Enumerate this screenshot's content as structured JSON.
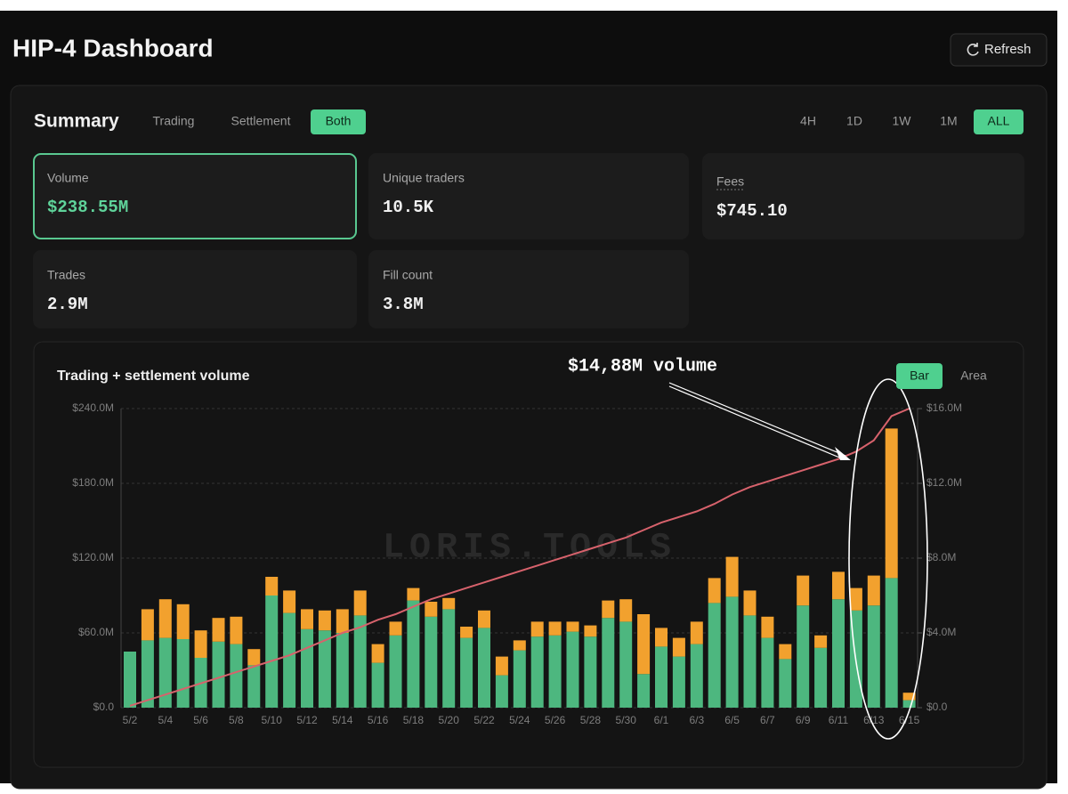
{
  "header": {
    "title": "HIP-4 Dashboard",
    "refresh": "Refresh"
  },
  "summary": {
    "title": "Summary",
    "tabs": [
      {
        "label": "Trading",
        "selected": false
      },
      {
        "label": "Settlement",
        "selected": false
      },
      {
        "label": "Both",
        "selected": true
      }
    ],
    "ranges": [
      {
        "label": "4H",
        "selected": false
      },
      {
        "label": "1D",
        "selected": false
      },
      {
        "label": "1W",
        "selected": false
      },
      {
        "label": "1M",
        "selected": false
      },
      {
        "label": "ALL",
        "selected": true
      }
    ],
    "stats": [
      {
        "label": "Volume",
        "value": "$238.55M",
        "selected": true
      },
      {
        "label": "Unique traders",
        "value": "10.5K",
        "selected": false
      },
      {
        "label": "Fees",
        "value": "$745.10",
        "selected": false
      },
      {
        "label": "Trades",
        "value": "2.9M",
        "selected": false
      },
      {
        "label": "Fill count",
        "value": "3.8M",
        "selected": false
      }
    ]
  },
  "chart_data": {
    "type": "bar",
    "stacked": true,
    "title": "Trading + settlement volume",
    "watermark": "LORIS.TOOLS",
    "annotation": "$14,88M volume",
    "views": [
      {
        "label": "Bar",
        "selected": true
      },
      {
        "label": "Area",
        "selected": false
      }
    ],
    "categories": [
      "5/2",
      null,
      "5/4",
      null,
      "5/6",
      null,
      "5/8",
      null,
      "5/10",
      null,
      "5/12",
      null,
      "5/14",
      null,
      "5/16",
      null,
      "5/18",
      null,
      "5/20",
      null,
      "5/22",
      null,
      "5/24",
      null,
      "5/26",
      null,
      "5/28",
      null,
      "5/30",
      null,
      "6/1",
      null,
      "6/3",
      null,
      "6/5",
      null,
      "6/7",
      null,
      "6/9",
      null,
      "6/11",
      null,
      "6/13",
      null,
      "6/15"
    ],
    "series": [
      {
        "color": "#4db77f",
        "values": [
          45,
          54,
          56,
          55,
          40,
          53,
          51,
          34,
          90,
          76,
          63,
          62,
          60,
          74,
          36,
          58,
          86,
          73,
          79,
          56,
          64,
          26,
          46,
          57,
          58,
          61,
          57,
          72,
          69,
          27,
          49,
          41,
          51,
          84,
          89,
          74,
          56,
          39,
          82,
          48,
          87,
          78,
          82,
          104,
          6
        ]
      },
      {
        "color": "#f2a12e",
        "values": [
          0,
          25,
          31,
          28,
          22,
          19,
          22,
          13,
          15,
          18,
          16,
          16,
          19,
          20,
          15,
          11,
          10,
          12,
          9,
          9,
          14,
          15,
          8,
          12,
          11,
          8,
          9,
          14,
          18,
          48,
          15,
          15,
          18,
          20,
          32,
          20,
          17,
          12,
          24,
          10,
          22,
          18,
          24,
          120,
          6
        ]
      },
      {
        "type": "line",
        "axis": "y2",
        "color": "#d7626c",
        "values": [
          0.1,
          0.4,
          0.7,
          1.0,
          1.3,
          1.6,
          1.9,
          2.2,
          2.5,
          2.8,
          3.2,
          3.6,
          4.0,
          4.3,
          4.7,
          5.0,
          5.4,
          5.8,
          6.1,
          6.4,
          6.7,
          7.0,
          7.3,
          7.6,
          7.9,
          8.2,
          8.5,
          8.8,
          9.1,
          9.5,
          9.9,
          10.2,
          10.5,
          10.9,
          11.4,
          11.8,
          12.1,
          12.4,
          12.7,
          13.0,
          13.3,
          13.7,
          14.3,
          15.6,
          16.0
        ]
      }
    ],
    "ylim": [
      0,
      240
    ],
    "yticks": [
      {
        "value": 0,
        "label": "$0.0"
      },
      {
        "value": 60,
        "label": "$60.0M"
      },
      {
        "value": 120,
        "label": "$120.0M"
      },
      {
        "value": 180,
        "label": "$180.0M"
      },
      {
        "value": 240,
        "label": "$240.0M"
      }
    ],
    "y2lim": [
      0,
      16
    ],
    "y2ticks": [
      {
        "value": 0,
        "label": "$0.0"
      },
      {
        "value": 4,
        "label": "$4.0M"
      },
      {
        "value": 8,
        "label": "$8.0M"
      },
      {
        "value": 12,
        "label": "$12.0M"
      },
      {
        "value": 16,
        "label": "$16.0M"
      }
    ],
    "grid": true
  }
}
